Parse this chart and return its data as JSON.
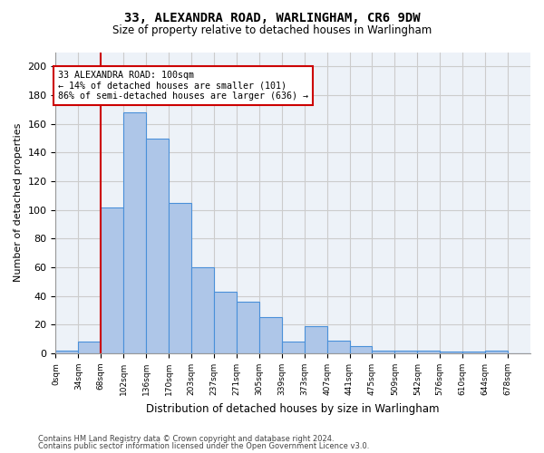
{
  "title1": "33, ALEXANDRA ROAD, WARLINGHAM, CR6 9DW",
  "title2": "Size of property relative to detached houses in Warlingham",
  "xlabel": "Distribution of detached houses by size in Warlingham",
  "ylabel": "Number of detached properties",
  "categories": [
    "0sqm",
    "34sqm",
    "68sqm",
    "102sqm",
    "136sqm",
    "170sqm",
    "203sqm",
    "237sqm",
    "271sqm",
    "305sqm",
    "339sqm",
    "373sqm",
    "407sqm",
    "441sqm",
    "475sqm",
    "509sqm",
    "542sqm",
    "576sqm",
    "610sqm",
    "644sqm",
    "678sqm"
  ],
  "values": [
    2,
    8,
    102,
    168,
    150,
    105,
    60,
    43,
    36,
    25,
    8,
    19,
    9,
    5,
    2,
    2,
    2,
    1,
    1,
    2,
    0
  ],
  "bar_color": "#aec6e8",
  "bar_edge_color": "#4a90d9",
  "marker_bin_index": 2,
  "marker_color": "#cc0000",
  "annotation_line1": "33 ALEXANDRA ROAD: 100sqm",
  "annotation_line2": "← 14% of detached houses are smaller (101)",
  "annotation_line3": "86% of semi-detached houses are larger (636) →",
  "annotation_box_color": "#ffffff",
  "annotation_box_edge": "#cc0000",
  "ylim": [
    0,
    210
  ],
  "yticks": [
    0,
    20,
    40,
    60,
    80,
    100,
    120,
    140,
    160,
    180,
    200
  ],
  "grid_color": "#cccccc",
  "bg_color": "#edf2f8",
  "footer1": "Contains HM Land Registry data © Crown copyright and database right 2024.",
  "footer2": "Contains public sector information licensed under the Open Government Licence v3.0."
}
